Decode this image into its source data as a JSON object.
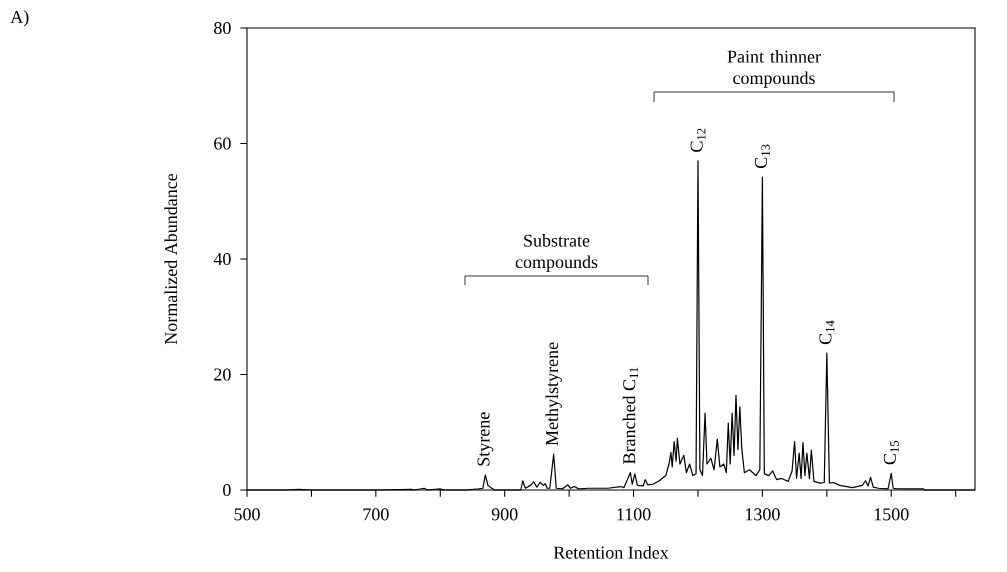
{
  "chart_data": {
    "type": "line",
    "xlabel": "Retention Index",
    "ylabel": "Normalized Abundance",
    "xlim": [
      500,
      1630
    ],
    "ylim": [
      0,
      80
    ],
    "xticks": [
      500,
      {
        "value": 600,
        "label": null
      },
      700,
      {
        "value": 800,
        "label": null
      },
      900,
      {
        "value": 1000,
        "label": null
      },
      1100,
      {
        "value": 1200,
        "label": null
      },
      1300,
      {
        "value": 1400,
        "label": null
      },
      1500,
      {
        "value": 1600,
        "label": null
      }
    ],
    "yticks": [
      0,
      20,
      40,
      60,
      80
    ],
    "marker": "none",
    "line_style": "solid",
    "series": [
      {
        "color": "#000000",
        "x": [
          500,
          560,
          580,
          600,
          700,
          755,
          760,
          775,
          780,
          800,
          805,
          840,
          860,
          866,
          870,
          874,
          880,
          885,
          925,
          928,
          932,
          940,
          945,
          950,
          955,
          960,
          963,
          966,
          970,
          976,
          980,
          990,
          998,
          1002,
          1008,
          1015,
          1030,
          1060,
          1080,
          1085,
          1095,
          1098,
          1102,
          1106,
          1115,
          1118,
          1122,
          1130,
          1140,
          1150,
          1155,
          1158,
          1160,
          1163,
          1166,
          1168,
          1172,
          1178,
          1182,
          1187,
          1192,
          1197,
          1200,
          1203,
          1207,
          1211,
          1214,
          1220,
          1225,
          1230,
          1234,
          1240,
          1244,
          1247,
          1250,
          1253,
          1256,
          1259,
          1262,
          1265,
          1268,
          1272,
          1280,
          1290,
          1296,
          1300,
          1303,
          1310,
          1316,
          1322,
          1330,
          1340,
          1346,
          1350,
          1353,
          1357,
          1360,
          1363,
          1366,
          1369,
          1373,
          1376,
          1380,
          1390,
          1396,
          1400,
          1404,
          1410,
          1420,
          1440,
          1455,
          1460,
          1464,
          1468,
          1472,
          1480,
          1495,
          1500,
          1503,
          1510,
          1550,
          1551,
          1630
        ],
        "values": [
          0,
          0,
          0.1,
          0,
          0,
          0.1,
          0,
          0.3,
          0,
          0.2,
          0,
          0,
          0.2,
          0.3,
          2.6,
          0.8,
          0.3,
          0,
          0,
          1.6,
          0.3,
          0.8,
          1.4,
          0.5,
          1.3,
          0.8,
          1.1,
          0.3,
          0.3,
          6.2,
          0.3,
          0.2,
          0.9,
          0.3,
          0.6,
          0.2,
          0.3,
          0.3,
          0.6,
          0.4,
          3.0,
          1.0,
          2.8,
          0.8,
          0.7,
          1.8,
          0.9,
          1.0,
          1.6,
          2.5,
          4.5,
          6.5,
          4,
          8.4,
          5,
          9,
          4.5,
          6,
          3,
          4.5,
          2.5,
          2.8,
          57,
          3.5,
          2.5,
          13.3,
          4.5,
          5.5,
          3.5,
          8.8,
          4,
          4.5,
          3,
          11.6,
          4.5,
          13.3,
          6,
          16.4,
          7,
          14.4,
          7.2,
          3,
          3.5,
          2.5,
          3.5,
          54.2,
          2.8,
          2.5,
          3.3,
          1.8,
          2,
          1.5,
          3.3,
          8.4,
          2,
          6.4,
          2,
          8.2,
          2.5,
          6.4,
          2,
          6.9,
          1.5,
          1.2,
          1.3,
          23.7,
          1.2,
          1.3,
          0.8,
          0.4,
          0.8,
          1.6,
          0.7,
          2.2,
          0.5,
          0.3,
          0.2,
          2.9,
          0.3,
          0.2,
          0.2,
          0,
          0
        ]
      }
    ],
    "annotations": [
      "A)",
      {
        "text": "Styrene",
        "x": 870,
        "y": 2.6
      },
      {
        "text": "Methylstyrene",
        "x": 976,
        "y": 6.2
      },
      {
        "text": "Branched C$_{11}$",
        "x": 1095,
        "y": 3.0
      },
      {
        "text": "C$_{12}$",
        "x": 1200,
        "y": 57
      },
      {
        "text": "C$_{13}$",
        "x": 1300,
        "y": 54.2
      },
      {
        "text": "C$_{14}$",
        "x": 1400,
        "y": 23.7
      },
      {
        "text": "C$_{15}$",
        "x": 1500,
        "y": 2.9
      },
      "Substrate compounds",
      "Paint thinner compounds"
    ]
  }
}
